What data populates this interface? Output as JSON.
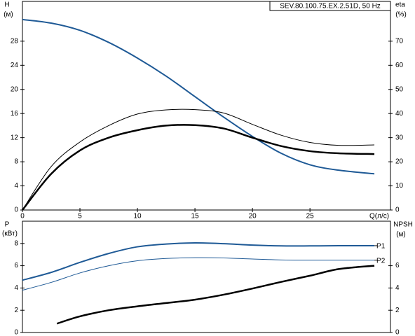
{
  "chart_data": [
    {
      "type": "line",
      "title": "SEV.80.100.75.EX.2.51D, 50 Hz",
      "x_label": "Q(л/с)",
      "y_label": "H",
      "y_unit": "(м)",
      "y2_label": "eta",
      "y2_unit": "(%)",
      "x": [
        0,
        2.5,
        5,
        7.5,
        10,
        12.5,
        15,
        17.5,
        20,
        22.5,
        25,
        27.5,
        30.6
      ],
      "xlim": [
        0,
        32
      ],
      "xticks": [
        0,
        5,
        10,
        15,
        20,
        25
      ],
      "ylim": [
        0,
        34.6
      ],
      "yticks": [
        0,
        4,
        8,
        12,
        16,
        20,
        24,
        28
      ],
      "y2lim": [
        0,
        86.5
      ],
      "y2ticks": [
        0,
        10,
        20,
        30,
        40,
        50,
        60,
        70
      ],
      "series": [
        {
          "color": "#1f5a96",
          "line_width": 2,
          "values": [
            31.6,
            31.0,
            29.8,
            27.8,
            25.2,
            22.2,
            18.8,
            15.4,
            12.2,
            9.4,
            7.5,
            6.6,
            6.0
          ]
        },
        {
          "color": "#000000",
          "line_width": 1,
          "axis": "y2",
          "values": [
            0,
            18,
            28.2,
            35,
            39.8,
            41.5,
            41.6,
            40.2,
            35.5,
            31,
            28,
            26.8,
            27.0
          ]
        },
        {
          "color": "#000000",
          "line_width": 2.5,
          "axis": "y2",
          "values": [
            0,
            15,
            24.7,
            30,
            33.1,
            35,
            35.2,
            33.8,
            30,
            26.5,
            24.4,
            23.5,
            23.2
          ]
        }
      ]
    },
    {
      "type": "line",
      "y_label": "P",
      "y_unit": "(кВт)",
      "y2_label": "NPSH",
      "y2_unit": "(м)",
      "x": [
        0,
        2.5,
        5,
        7.5,
        10,
        12.5,
        15,
        17.5,
        20,
        22.5,
        25,
        27.5,
        30.6
      ],
      "xlim": [
        0,
        32
      ],
      "ylim": [
        0,
        10
      ],
      "yticks": [
        0,
        2,
        4,
        6,
        8
      ],
      "y2lim": [
        0,
        10
      ],
      "y2ticks": [
        0,
        2,
        4,
        6
      ],
      "series": [
        {
          "name": "P1",
          "color": "#1f5a96",
          "line_width": 2,
          "values": [
            4.7,
            5.4,
            6.3,
            7.1,
            7.7,
            7.95,
            8.05,
            7.98,
            7.85,
            7.78,
            7.78,
            7.8,
            7.8
          ]
        },
        {
          "name": "P2",
          "color": "#1f5a96",
          "line_width": 1,
          "values": [
            3.8,
            4.5,
            5.35,
            6.0,
            6.45,
            6.65,
            6.72,
            6.7,
            6.6,
            6.52,
            6.5,
            6.5,
            6.5
          ]
        },
        {
          "color": "#000000",
          "line_width": 2.5,
          "axis": "y2",
          "x": [
            3,
            5,
            7.5,
            10,
            12.5,
            15,
            17.5,
            20,
            22.5,
            25,
            27.5,
            30.6
          ],
          "values": [
            0.8,
            1.45,
            2.0,
            2.35,
            2.65,
            2.95,
            3.4,
            3.95,
            4.55,
            5.1,
            5.7,
            6.0
          ]
        }
      ]
    }
  ]
}
